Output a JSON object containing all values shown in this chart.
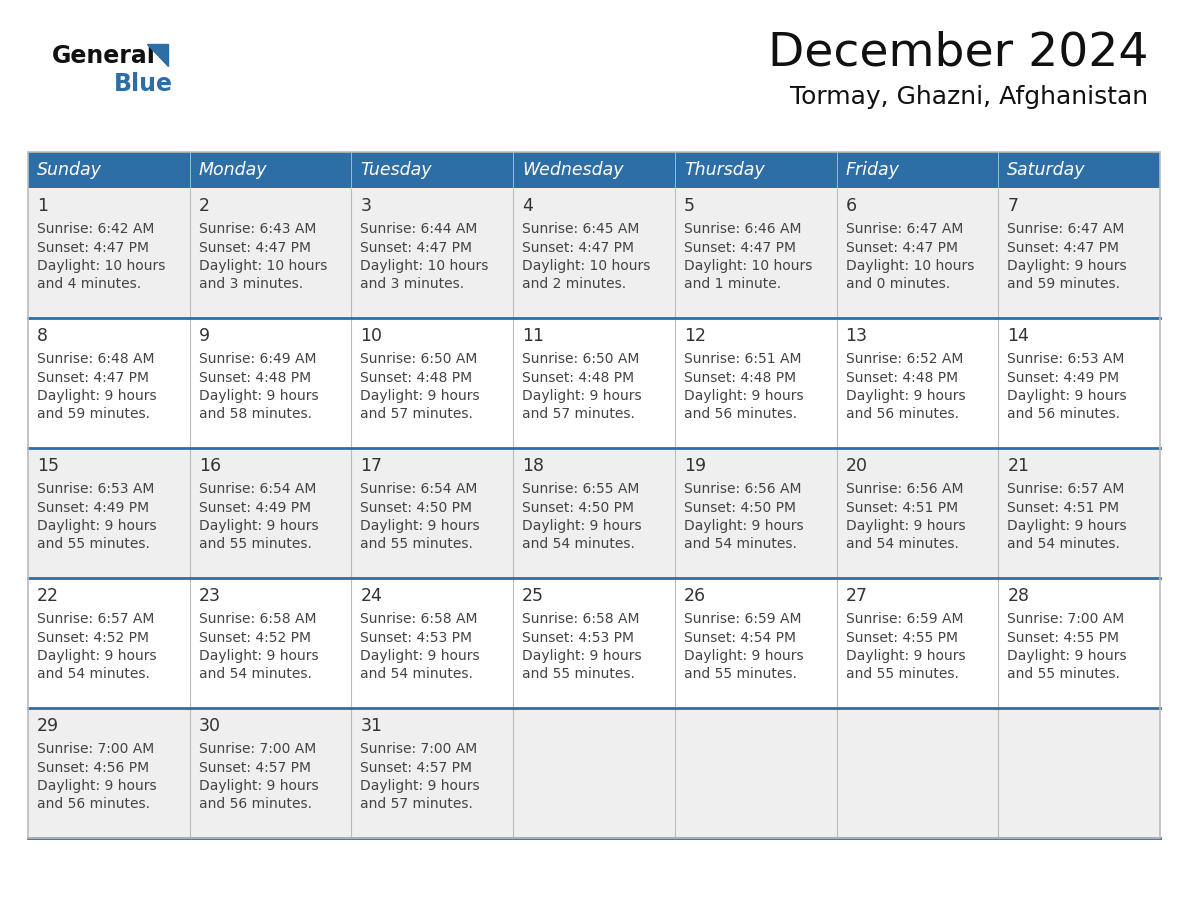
{
  "title": "December 2024",
  "subtitle": "Tormay, Ghazni, Afghanistan",
  "days_of_week": [
    "Sunday",
    "Monday",
    "Tuesday",
    "Wednesday",
    "Thursday",
    "Friday",
    "Saturday"
  ],
  "header_bg": "#2E6EA6",
  "header_text": "#FFFFFF",
  "cell_bg_odd": "#EFEFEF",
  "cell_bg_even": "#FFFFFF",
  "cell_border_row": "#2E6EA6",
  "cell_border_col": "#BBBBBB",
  "day_num_color": "#333333",
  "cell_text_color": "#444444",
  "title_color": "#111111",
  "subtitle_color": "#111111",
  "general_color": "#1a1a1a",
  "blue_color": "#2E6EA6",
  "calendar_data": [
    [
      {
        "day": 1,
        "sunrise": "6:42 AM",
        "sunset": "4:47 PM",
        "daylight": "10 hours and 4 minutes"
      },
      {
        "day": 2,
        "sunrise": "6:43 AM",
        "sunset": "4:47 PM",
        "daylight": "10 hours and 3 minutes"
      },
      {
        "day": 3,
        "sunrise": "6:44 AM",
        "sunset": "4:47 PM",
        "daylight": "10 hours and 3 minutes"
      },
      {
        "day": 4,
        "sunrise": "6:45 AM",
        "sunset": "4:47 PM",
        "daylight": "10 hours and 2 minutes"
      },
      {
        "day": 5,
        "sunrise": "6:46 AM",
        "sunset": "4:47 PM",
        "daylight": "10 hours and 1 minute"
      },
      {
        "day": 6,
        "sunrise": "6:47 AM",
        "sunset": "4:47 PM",
        "daylight": "10 hours and 0 minutes"
      },
      {
        "day": 7,
        "sunrise": "6:47 AM",
        "sunset": "4:47 PM",
        "daylight": "9 hours and 59 minutes"
      }
    ],
    [
      {
        "day": 8,
        "sunrise": "6:48 AM",
        "sunset": "4:47 PM",
        "daylight": "9 hours and 59 minutes"
      },
      {
        "day": 9,
        "sunrise": "6:49 AM",
        "sunset": "4:48 PM",
        "daylight": "9 hours and 58 minutes"
      },
      {
        "day": 10,
        "sunrise": "6:50 AM",
        "sunset": "4:48 PM",
        "daylight": "9 hours and 57 minutes"
      },
      {
        "day": 11,
        "sunrise": "6:50 AM",
        "sunset": "4:48 PM",
        "daylight": "9 hours and 57 minutes"
      },
      {
        "day": 12,
        "sunrise": "6:51 AM",
        "sunset": "4:48 PM",
        "daylight": "9 hours and 56 minutes"
      },
      {
        "day": 13,
        "sunrise": "6:52 AM",
        "sunset": "4:48 PM",
        "daylight": "9 hours and 56 minutes"
      },
      {
        "day": 14,
        "sunrise": "6:53 AM",
        "sunset": "4:49 PM",
        "daylight": "9 hours and 56 minutes"
      }
    ],
    [
      {
        "day": 15,
        "sunrise": "6:53 AM",
        "sunset": "4:49 PM",
        "daylight": "9 hours and 55 minutes"
      },
      {
        "day": 16,
        "sunrise": "6:54 AM",
        "sunset": "4:49 PM",
        "daylight": "9 hours and 55 minutes"
      },
      {
        "day": 17,
        "sunrise": "6:54 AM",
        "sunset": "4:50 PM",
        "daylight": "9 hours and 55 minutes"
      },
      {
        "day": 18,
        "sunrise": "6:55 AM",
        "sunset": "4:50 PM",
        "daylight": "9 hours and 54 minutes"
      },
      {
        "day": 19,
        "sunrise": "6:56 AM",
        "sunset": "4:50 PM",
        "daylight": "9 hours and 54 minutes"
      },
      {
        "day": 20,
        "sunrise": "6:56 AM",
        "sunset": "4:51 PM",
        "daylight": "9 hours and 54 minutes"
      },
      {
        "day": 21,
        "sunrise": "6:57 AM",
        "sunset": "4:51 PM",
        "daylight": "9 hours and 54 minutes"
      }
    ],
    [
      {
        "day": 22,
        "sunrise": "6:57 AM",
        "sunset": "4:52 PM",
        "daylight": "9 hours and 54 minutes"
      },
      {
        "day": 23,
        "sunrise": "6:58 AM",
        "sunset": "4:52 PM",
        "daylight": "9 hours and 54 minutes"
      },
      {
        "day": 24,
        "sunrise": "6:58 AM",
        "sunset": "4:53 PM",
        "daylight": "9 hours and 54 minutes"
      },
      {
        "day": 25,
        "sunrise": "6:58 AM",
        "sunset": "4:53 PM",
        "daylight": "9 hours and 55 minutes"
      },
      {
        "day": 26,
        "sunrise": "6:59 AM",
        "sunset": "4:54 PM",
        "daylight": "9 hours and 55 minutes"
      },
      {
        "day": 27,
        "sunrise": "6:59 AM",
        "sunset": "4:55 PM",
        "daylight": "9 hours and 55 minutes"
      },
      {
        "day": 28,
        "sunrise": "7:00 AM",
        "sunset": "4:55 PM",
        "daylight": "9 hours and 55 minutes"
      }
    ],
    [
      {
        "day": 29,
        "sunrise": "7:00 AM",
        "sunset": "4:56 PM",
        "daylight": "9 hours and 56 minutes"
      },
      {
        "day": 30,
        "sunrise": "7:00 AM",
        "sunset": "4:57 PM",
        "daylight": "9 hours and 56 minutes"
      },
      {
        "day": 31,
        "sunrise": "7:00 AM",
        "sunset": "4:57 PM",
        "daylight": "9 hours and 57 minutes"
      },
      null,
      null,
      null,
      null
    ]
  ]
}
